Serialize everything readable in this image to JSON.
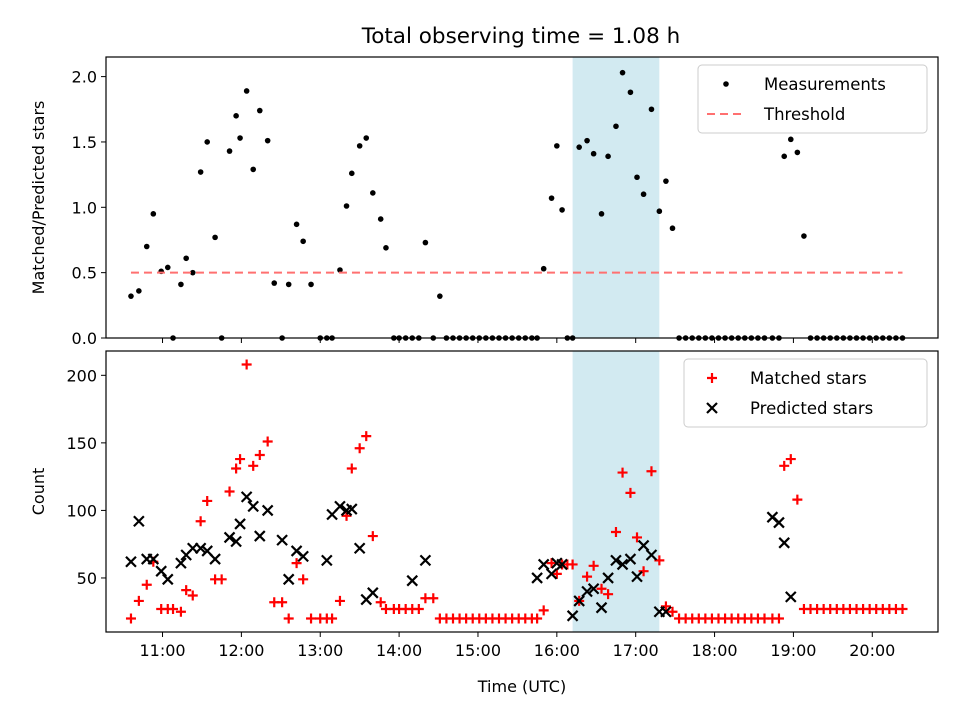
{
  "title": "Total observing time = 1.08 h",
  "colors": {
    "measurement": "#000000",
    "threshold": "#ff7070",
    "matched": "#ff0000",
    "predicted": "#000000",
    "highlight": "#add8e6"
  },
  "chart_data": [
    {
      "type": "scatter",
      "ylabel": "Matched/Predicted stars",
      "xlim": [
        "10:17",
        "20:50"
      ],
      "ylim": [
        0,
        2.15
      ],
      "yticks": [
        "0.0",
        "0.5",
        "1.0",
        "1.5",
        "2.0"
      ],
      "ytick_values": [
        0,
        0.5,
        1.0,
        1.5,
        2.0
      ],
      "highlight_span": [
        "16:12",
        "17:18"
      ],
      "legend_position": "top-right",
      "series": [
        {
          "name": "Measurements",
          "x": [
            "10:36",
            "10:42",
            "10:48",
            "10:53",
            "10:59",
            "11:04",
            "11:08",
            "11:14",
            "11:18",
            "11:23",
            "11:29",
            "11:34",
            "11:40",
            "11:45",
            "11:51",
            "11:56",
            "11:59",
            "12:04",
            "12:09",
            "12:14",
            "12:20",
            "12:25",
            "12:31",
            "12:36",
            "12:42",
            "12:47",
            "12:53",
            "13:00",
            "13:05",
            "13:09",
            "13:15",
            "13:20",
            "13:24",
            "13:30",
            "13:35",
            "13:40",
            "13:46",
            "13:50",
            "13:56",
            "14:00",
            "14:05",
            "14:10",
            "14:15",
            "14:20",
            "14:26",
            "14:31",
            "14:36",
            "14:41",
            "14:46",
            "14:51",
            "14:56",
            "15:01",
            "15:06",
            "15:11",
            "15:16",
            "15:21",
            "15:26",
            "15:31",
            "15:36",
            "15:41",
            "15:45",
            "15:50",
            "15:56",
            "16:00",
            "16:04",
            "16:08",
            "16:12",
            "16:17",
            "16:23",
            "16:28",
            "16:34",
            "16:39",
            "16:45",
            "16:50",
            "16:56",
            "17:01",
            "17:06",
            "17:12",
            "17:18",
            "17:23",
            "17:28",
            "17:33",
            "17:38",
            "17:43",
            "17:48",
            "17:53",
            "17:58",
            "18:03",
            "18:08",
            "18:13",
            "18:18",
            "18:23",
            "18:28",
            "18:33",
            "18:38",
            "18:44",
            "18:49",
            "18:53",
            "18:58",
            "19:03",
            "19:08",
            "19:13",
            "19:18",
            "19:23",
            "19:28",
            "19:33",
            "19:38",
            "19:43",
            "19:48",
            "19:53",
            "19:58",
            "20:03",
            "20:08",
            "20:13",
            "20:18",
            "20:23"
          ],
          "y": [
            0.32,
            0.36,
            0.7,
            0.95,
            0.51,
            0.54,
            0.0,
            0.41,
            0.61,
            0.5,
            1.27,
            1.5,
            0.77,
            0.0,
            1.43,
            1.7,
            1.53,
            1.89,
            1.29,
            1.74,
            1.51,
            0.42,
            0.0,
            0.41,
            0.87,
            0.74,
            0.41,
            0.0,
            0.0,
            0.0,
            0.52,
            1.01,
            1.26,
            1.47,
            1.53,
            1.11,
            0.91,
            0.69,
            0.0,
            0.0,
            0.0,
            0.0,
            0.0,
            0.73,
            0.0,
            0.32,
            0.0,
            0.0,
            0.0,
            0.0,
            0.0,
            0.0,
            0.0,
            0.0,
            0.0,
            0.0,
            0.0,
            0.0,
            0.0,
            0.0,
            0.0,
            0.53,
            1.07,
            1.47,
            0.98,
            0.0,
            0.0,
            1.46,
            1.51,
            1.41,
            0.95,
            1.39,
            1.62,
            2.03,
            1.88,
            1.23,
            1.1,
            1.75,
            0.97,
            1.2,
            0.84,
            0.0,
            0.0,
            0.0,
            0.0,
            0.0,
            0.0,
            0.0,
            0.0,
            0.0,
            0.0,
            0.0,
            0.0,
            0.0,
            0.0,
            0.0,
            0.0,
            1.39,
            1.52,
            1.42,
            0.78,
            0.0,
            0.0,
            0.0,
            0.0,
            0.0,
            0.0,
            0.0,
            0.0,
            0.0,
            0.0,
            0.0,
            0.0,
            0.0,
            0.0,
            0.0
          ]
        },
        {
          "name": "Threshold",
          "x": [
            "10:36",
            "20:23"
          ],
          "y": [
            0.5,
            0.5
          ]
        }
      ]
    },
    {
      "type": "scatter",
      "xlabel": "Time (UTC)",
      "ylabel": "Count",
      "xlim": [
        "10:17",
        "20:50"
      ],
      "ylim": [
        10,
        218
      ],
      "xticks": [
        "11:00",
        "12:00",
        "13:00",
        "14:00",
        "15:00",
        "16:00",
        "17:00",
        "18:00",
        "19:00",
        "20:00"
      ],
      "yticks": [
        "50",
        "100",
        "150",
        "200"
      ],
      "ytick_values": [
        50,
        100,
        150,
        200
      ],
      "highlight_span": [
        "16:12",
        "17:18"
      ],
      "legend_position": "top-right",
      "series": [
        {
          "name": "Matched stars",
          "x": [
            "10:36",
            "10:42",
            "10:48",
            "10:53",
            "10:59",
            "11:04",
            "11:08",
            "11:14",
            "11:18",
            "11:23",
            "11:29",
            "11:34",
            "11:40",
            "11:45",
            "11:51",
            "11:56",
            "11:59",
            "12:04",
            "12:09",
            "12:14",
            "12:20",
            "12:25",
            "12:31",
            "12:36",
            "12:42",
            "12:47",
            "12:53",
            "13:00",
            "13:05",
            "13:09",
            "13:15",
            "13:20",
            "13:24",
            "13:30",
            "13:35",
            "13:40",
            "13:46",
            "13:50",
            "13:56",
            "14:00",
            "14:05",
            "14:10",
            "14:15",
            "14:20",
            "14:26",
            "14:31",
            "14:36",
            "14:41",
            "14:46",
            "14:51",
            "14:56",
            "15:01",
            "15:06",
            "15:11",
            "15:16",
            "15:21",
            "15:26",
            "15:31",
            "15:36",
            "15:41",
            "15:45",
            "15:50",
            "15:56",
            "16:00",
            "16:04",
            "16:08",
            "16:12",
            "16:17",
            "16:23",
            "16:28",
            "16:34",
            "16:39",
            "16:45",
            "16:50",
            "16:56",
            "17:01",
            "17:06",
            "17:12",
            "17:18",
            "17:23",
            "17:28",
            "17:33",
            "17:38",
            "17:43",
            "17:48",
            "17:53",
            "17:58",
            "18:03",
            "18:08",
            "18:13",
            "18:18",
            "18:23",
            "18:28",
            "18:33",
            "18:38",
            "18:44",
            "18:49",
            "18:53",
            "18:58",
            "19:03",
            "19:08",
            "19:13",
            "19:18",
            "19:23",
            "19:28",
            "19:33",
            "19:38",
            "19:43",
            "19:48",
            "19:53",
            "19:58",
            "20:03",
            "20:08",
            "20:13",
            "20:18",
            "20:23"
          ],
          "y": [
            20,
            33,
            45,
            62,
            27,
            27,
            27,
            25,
            41,
            37,
            92,
            107,
            49,
            49,
            114,
            131,
            138,
            208,
            133,
            141,
            151,
            32,
            32,
            20,
            61,
            49,
            20,
            20,
            20,
            20,
            33,
            96,
            131,
            146,
            155,
            81,
            32,
            27,
            27,
            27,
            27,
            27,
            27,
            35,
            35,
            20,
            20,
            20,
            20,
            20,
            20,
            20,
            20,
            20,
            20,
            20,
            20,
            20,
            20,
            20,
            20,
            26,
            61,
            53,
            60,
            60,
            60,
            33,
            51,
            59,
            42,
            38,
            84,
            128,
            113,
            80,
            55,
            129,
            63,
            29,
            25,
            20,
            20,
            20,
            20,
            20,
            20,
            20,
            20,
            20,
            20,
            20,
            20,
            20,
            20,
            20,
            20,
            133,
            138,
            108,
            27,
            27,
            27,
            27,
            27,
            27,
            27,
            27,
            27,
            27,
            27,
            27,
            27,
            27,
            27,
            27
          ]
        },
        {
          "name": "Predicted stars",
          "x": [
            "10:36",
            "10:42",
            "10:48",
            "10:53",
            "10:59",
            "11:04",
            "11:14",
            "11:18",
            "11:23",
            "11:29",
            "11:34",
            "11:40",
            "11:51",
            "11:56",
            "11:59",
            "12:04",
            "12:09",
            "12:14",
            "12:20",
            "12:31",
            "12:36",
            "12:42",
            "12:47",
            "13:05",
            "13:09",
            "13:15",
            "13:20",
            "13:24",
            "13:30",
            "13:35",
            "13:40",
            "14:10",
            "14:20",
            "15:45",
            "15:50",
            "15:56",
            "16:00",
            "16:04",
            "16:12",
            "16:17",
            "16:23",
            "16:28",
            "16:34",
            "16:39",
            "16:45",
            "16:50",
            "16:56",
            "17:01",
            "17:06",
            "17:12",
            "17:18",
            "17:23",
            "18:44",
            "18:49",
            "18:53",
            "18:58"
          ],
          "y": [
            62,
            92,
            64,
            64,
            55,
            49,
            61,
            67,
            72,
            72,
            70,
            64,
            80,
            77,
            90,
            110,
            103,
            81,
            100,
            78,
            49,
            70,
            66,
            63,
            97,
            103,
            100,
            101,
            72,
            34,
            39,
            48,
            63,
            50,
            60,
            53,
            61,
            60,
            22,
            33,
            40,
            42,
            28,
            50,
            63,
            60,
            64,
            51,
            74,
            67,
            25,
            25,
            95,
            91,
            76,
            36
          ]
        }
      ]
    }
  ]
}
